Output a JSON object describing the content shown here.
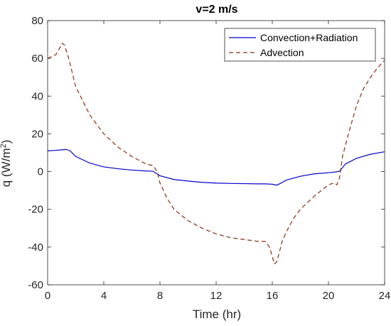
{
  "chart_data": {
    "type": "line",
    "title": "v=2 m/s",
    "xlabel": "Time (hr)",
    "ylabel": "q (W/m",
    "ylabel_sup": "2",
    "ylabel_close": ")",
    "xlim": [
      0,
      24
    ],
    "ylim": [
      -60,
      80
    ],
    "xticks": [
      0,
      4,
      8,
      12,
      16,
      20,
      24
    ],
    "yticks": [
      80,
      60,
      40,
      20,
      0,
      -20,
      -40,
      -60
    ],
    "grid": false,
    "legend_position": "top-right",
    "series": [
      {
        "name": "Convection+Radiation",
        "color": "#0000cc",
        "style": "solid",
        "x": [
          0,
          0.5,
          1.0,
          1.3,
          1.6,
          2,
          3,
          4,
          5,
          6,
          7,
          7.5,
          8,
          9,
          10,
          11,
          12,
          13,
          14,
          15,
          15.5,
          16,
          16.3,
          16.6,
          17,
          18,
          19,
          20,
          20.5,
          20.8,
          21.2,
          22,
          23,
          24
        ],
        "y": [
          11,
          11.2,
          11.5,
          11.8,
          11,
          8,
          4.5,
          2.5,
          1.5,
          0.8,
          0.3,
          0.2,
          -2.2,
          -4.2,
          -5,
          -5.7,
          -6.1,
          -6.3,
          -6.4,
          -6.5,
          -6.5,
          -6.7,
          -7.2,
          -6.2,
          -4.5,
          -2.5,
          -1.2,
          -0.6,
          -0.2,
          0.2,
          4,
          7,
          9.2,
          10.5
        ]
      },
      {
        "name": "Advection",
        "color": "#8b2e12",
        "style": "dashed",
        "x": [
          0,
          0.3,
          0.6,
          0.9,
          1.05,
          1.2,
          1.5,
          2,
          3,
          4,
          5,
          6,
          7,
          7.5,
          7.8,
          8,
          8.5,
          9,
          10,
          11,
          12,
          13,
          14,
          15,
          15.5,
          15.8,
          16,
          16.15,
          16.3,
          16.5,
          16.7,
          17,
          17.5,
          18,
          19,
          19.5,
          20,
          20.4,
          20.6,
          20.8,
          21,
          21.5,
          22,
          22.5,
          23,
          23.5,
          24
        ],
        "y": [
          60,
          61,
          62,
          66,
          68,
          67,
          60,
          45,
          30,
          20,
          13,
          8,
          4,
          3.2,
          0,
          -6,
          -14,
          -20,
          -26,
          -30,
          -33,
          -35,
          -36,
          -37,
          -37,
          -40,
          -45,
          -49,
          -48,
          -43,
          -37,
          -32,
          -25,
          -20,
          -13,
          -10,
          -7,
          -6,
          -7,
          -3,
          8,
          22,
          35,
          44,
          50,
          55,
          59
        ]
      }
    ]
  }
}
